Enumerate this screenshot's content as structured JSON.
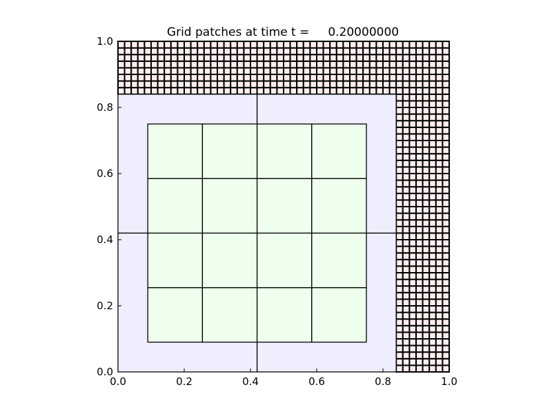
{
  "chart_data": {
    "type": "heatmap",
    "title": "Grid patches at time t =     0.20000000",
    "xlabel": "",
    "ylabel": "",
    "xlim": [
      0,
      1
    ],
    "ylim": [
      0,
      1
    ],
    "xticks": [
      "0.0",
      "0.2",
      "0.4",
      "0.6",
      "0.8",
      "1.0"
    ],
    "yticks": [
      "0.0",
      "0.2",
      "0.4",
      "0.6",
      "0.8",
      "1.0"
    ],
    "grid": false,
    "patches": [
      {
        "level": 1,
        "x": [
          0,
          1
        ],
        "y": [
          0,
          1
        ],
        "cells": [
          50,
          50
        ],
        "color": "#ffeeee",
        "exclude": {
          "x": [
            0,
            0.84
          ],
          "y": [
            0,
            0.84
          ]
        }
      },
      {
        "level": 2,
        "x": [
          0,
          0.84
        ],
        "y": [
          0,
          0.84
        ],
        "cells": [
          2,
          2
        ],
        "color": "#eeeeff"
      },
      {
        "level": 3,
        "x": [
          0.09,
          0.75
        ],
        "y": [
          0.09,
          0.75
        ],
        "cells": [
          4,
          4
        ],
        "color": "#eeffee"
      }
    ]
  }
}
